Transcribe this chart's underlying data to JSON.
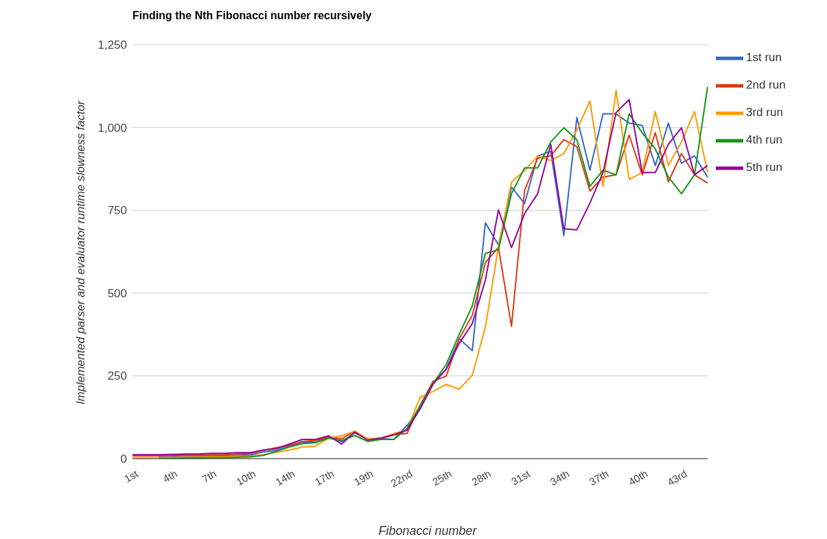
{
  "chart_data": {
    "type": "line",
    "title": "Finding the Nth Fibonacci number recursively",
    "xlabel": "Fibonacci number",
    "ylabel": "Implemented parser and evaluator runtime slowness factor",
    "categories": [
      "1st",
      null,
      null,
      "4th",
      null,
      null,
      "7th",
      null,
      null,
      "10th",
      null,
      null,
      "14th",
      null,
      null,
      "17th",
      null,
      null,
      "19th",
      null,
      null,
      "22nd",
      null,
      null,
      "25th",
      null,
      null,
      "28th",
      null,
      null,
      "31st",
      null,
      null,
      "34th",
      null,
      null,
      "37th",
      null,
      null,
      "40th",
      null,
      null,
      "43rd",
      null,
      null
    ],
    "series": [
      {
        "name": "1st run",
        "color": "#3366cc",
        "values": [
          null,
          null,
          6,
          7,
          8,
          8,
          9,
          9,
          10,
          11,
          20,
          25,
          38,
          50,
          50,
          65,
          51,
          78,
          58,
          60,
          58,
          100,
          150,
          227,
          270,
          362,
          326,
          712,
          645,
          820,
          770,
          914,
          928,
          673,
          1030,
          871,
          1041,
          1041,
          1013,
          1006,
          885,
          1013,
          892,
          914,
          850
        ]
      },
      {
        "name": "2nd run",
        "color": "#dc3912",
        "values": [
          9,
          9,
          9,
          10,
          11,
          11,
          12,
          12,
          14,
          15,
          25,
          33,
          40,
          52,
          55,
          65,
          60,
          83,
          58,
          60,
          72,
          76,
          160,
          234,
          249,
          362,
          433,
          592,
          638,
          400,
          810,
          907,
          914,
          963,
          942,
          808,
          850,
          857,
          977,
          857,
          984,
          836,
          921,
          857,
          832
        ]
      },
      {
        "name": "3rd run",
        "color": "#ff9900",
        "values": [
          3,
          3,
          3,
          4,
          5,
          5,
          6,
          6,
          7,
          8,
          12,
          19,
          26,
          35,
          38,
          62,
          69,
          83,
          60,
          62,
          76,
          86,
          185,
          203,
          224,
          210,
          252,
          397,
          640,
          835,
          870,
          914,
          900,
          921,
          992,
          1080,
          822,
          1112,
          843,
          864,
          1048,
          885,
          956,
          1048,
          864
        ]
      },
      {
        "name": "4th run",
        "color": "#109618",
        "values": [
          null,
          null,
          0,
          1,
          2,
          2,
          3,
          3,
          4,
          5,
          10,
          22,
          35,
          45,
          48,
          62,
          55,
          70,
          52,
          58,
          58,
          90,
          160,
          227,
          284,
          376,
          461,
          620,
          631,
          800,
          878,
          878,
          956,
          999,
          963,
          822,
          871,
          857,
          1041,
          984,
          935,
          850,
          800,
          857,
          1122
        ]
      },
      {
        "name": "5th run",
        "color": "#990099",
        "values": [
          12,
          12,
          12,
          13,
          14,
          14,
          16,
          16,
          18,
          18,
          26,
          30,
          44,
          58,
          58,
          69,
          44,
          80,
          56,
          62,
          72,
          86,
          150,
          225,
          270,
          348,
          408,
          539,
          751,
          637,
          740,
          800,
          949,
          694,
          691,
          772,
          864,
          1045,
          1084,
          864,
          864,
          949,
          999,
          857,
          885
        ]
      }
    ],
    "ylim": [
      0,
      1250
    ],
    "yticks": [
      0,
      {
        "value": 250,
        "label": "250"
      },
      {
        "value": 500,
        "label": "500"
      },
      {
        "value": 750,
        "label": "750"
      },
      {
        "value": 1000,
        "label": "1,000"
      },
      {
        "value": 1250,
        "label": "1,250"
      }
    ],
    "grid": "y",
    "legend": "top right",
    "marker": "none",
    "line_style": "solid"
  }
}
